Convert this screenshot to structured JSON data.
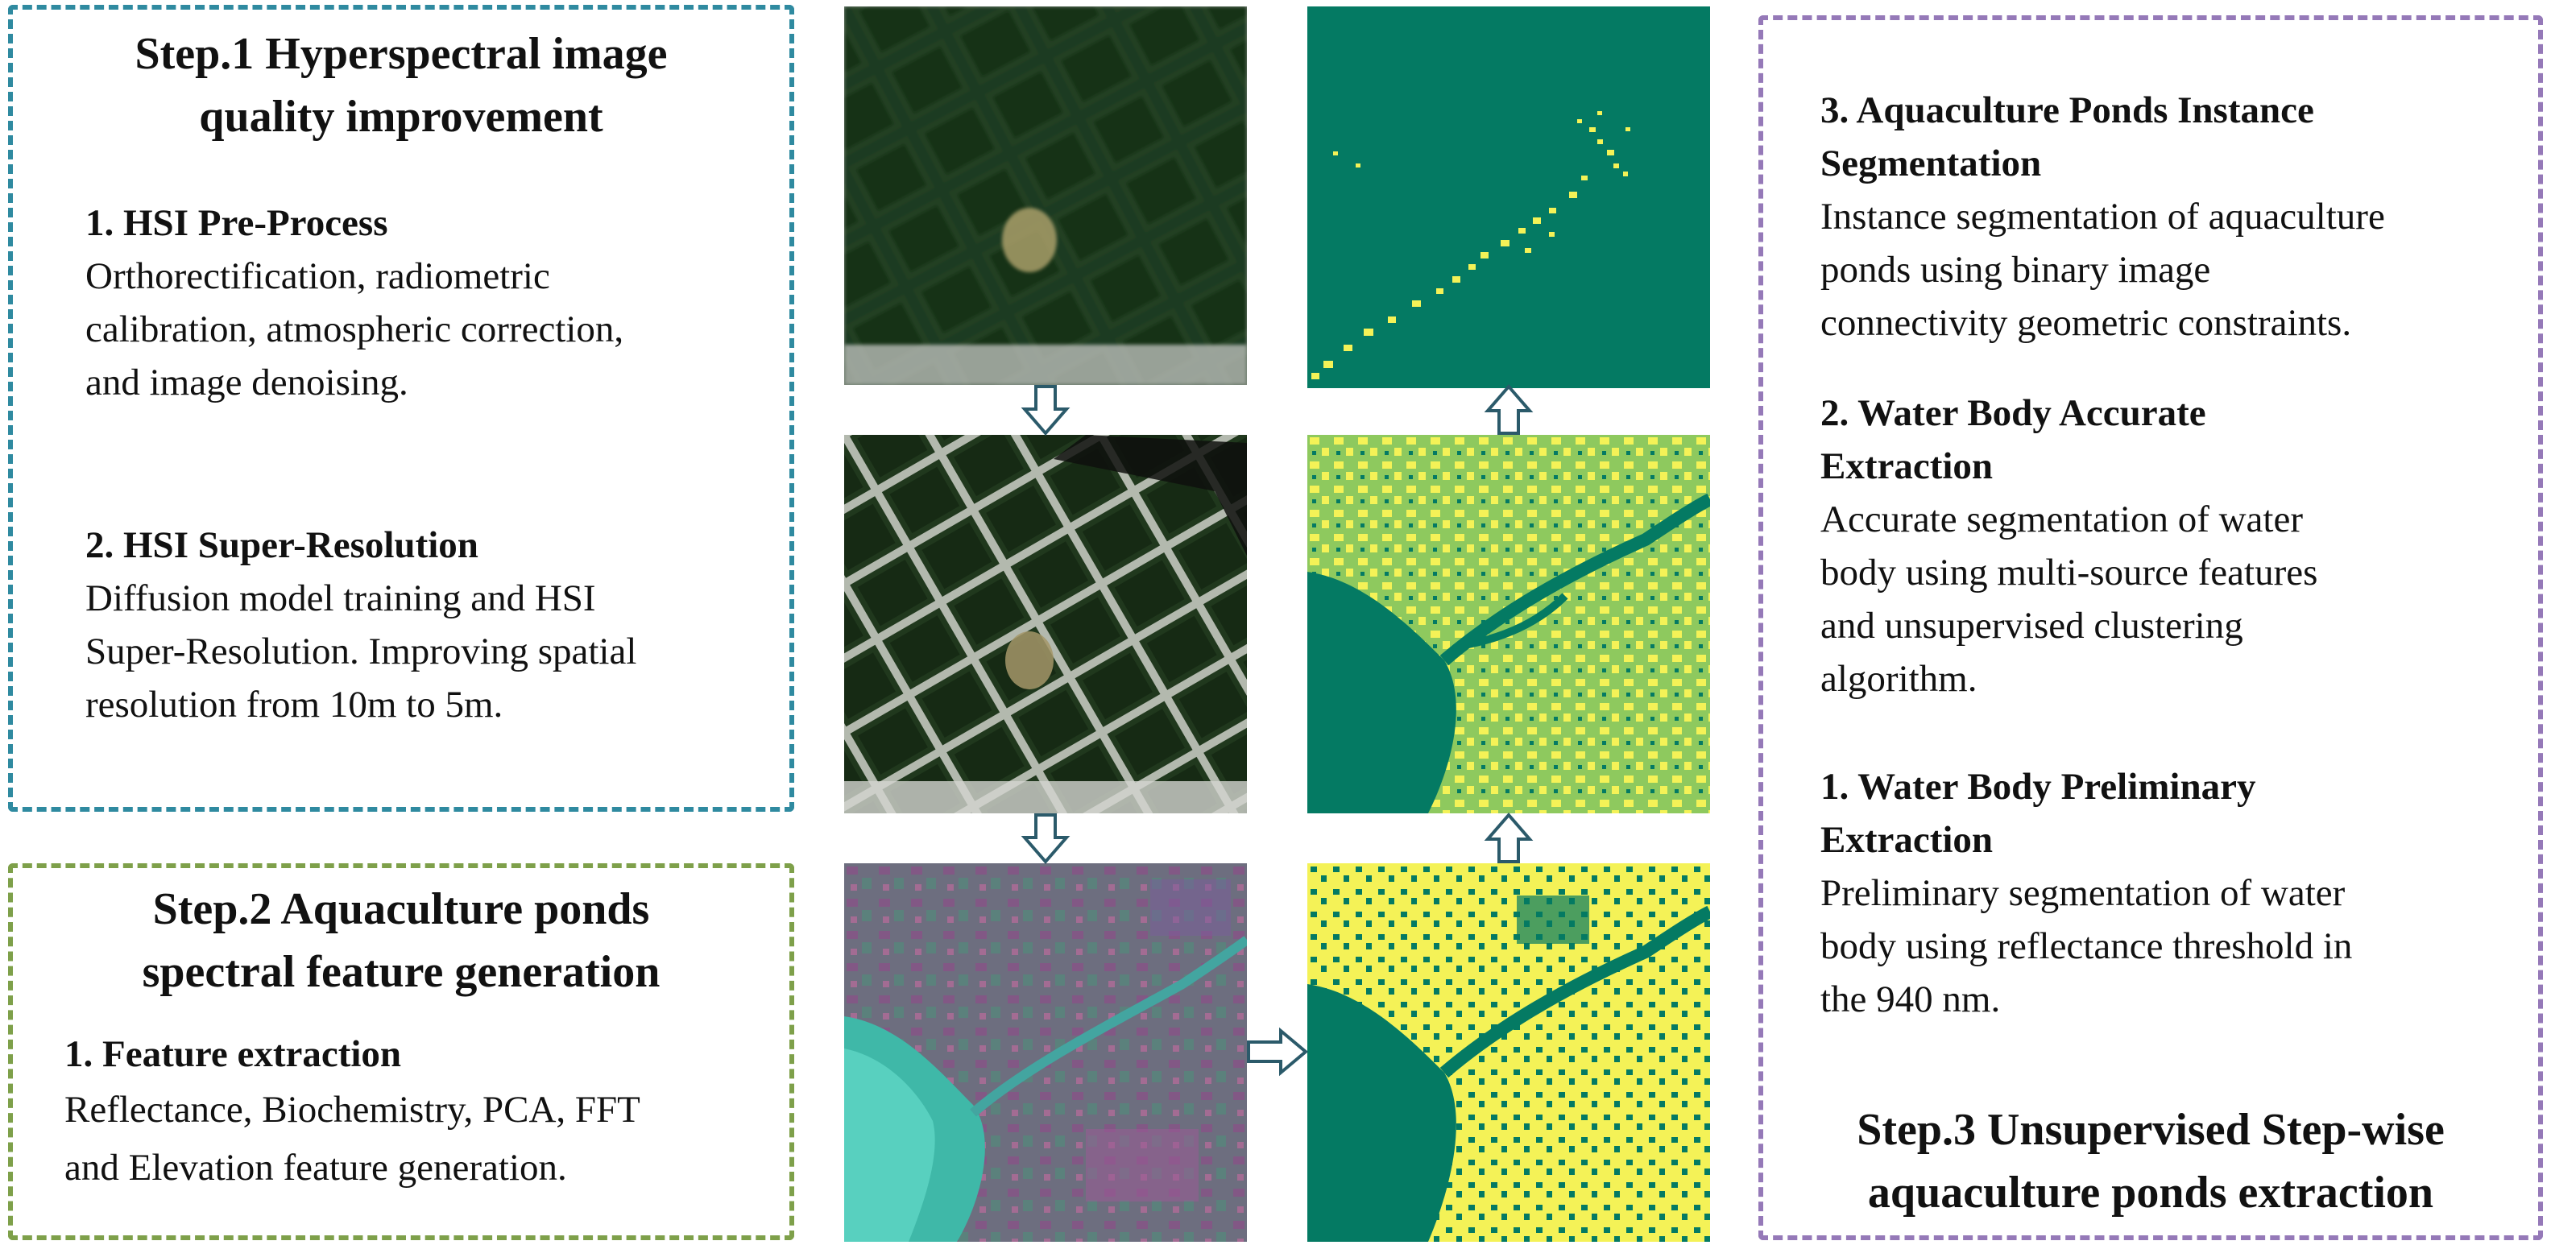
{
  "step1": {
    "title_lines": [
      "Step.1 Hyperspectral image",
      "quality improvement"
    ],
    "item1": {
      "heading": "1. HSI Pre-Process",
      "lines": [
        "Orthorectification, radiometric",
        "calibration, atmospheric correction,",
        "and image denoising."
      ]
    },
    "item2": {
      "heading": "2. HSI Super-Resolution",
      "lines": [
        "Diffusion model training and HSI",
        "Super-Resolution. Improving spatial",
        "resolution from 10m to 5m."
      ]
    }
  },
  "step2": {
    "title_lines": [
      "Step.2 Aquaculture ponds",
      "spectral feature generation"
    ],
    "item1": {
      "heading": "1.  Feature extraction",
      "lines": [
        "Reflectance, Biochemistry, PCA, FFT",
        "and Elevation feature generation."
      ]
    }
  },
  "step3": {
    "title_lines": [
      "Step.3 Unsupervised Step-wise",
      "aquaculture ponds extraction"
    ],
    "item3": {
      "heading_lines": [
        "3. Aquaculture Ponds Instance",
        "Segmentation"
      ],
      "lines": [
        "Instance segmentation of aquaculture",
        "ponds using binary image",
        "connectivity geometric constraints."
      ]
    },
    "item2": {
      "heading_lines": [
        "2. Water Body Accurate",
        "Extraction"
      ],
      "lines": [
        "Accurate segmentation of water",
        "body  using multi-source features",
        "and unsupervised clustering",
        "algorithm."
      ]
    },
    "item1": {
      "heading_lines": [
        "1. Water Body Preliminary",
        "Extraction"
      ],
      "lines": [
        "Preliminary  segmentation of water",
        "body using reflectance threshold in",
        "the 940 nm."
      ]
    }
  },
  "colors": {
    "step1_border": "#2f8aa0",
    "step2_border": "#7ea04a",
    "step3_border": "#9579b8",
    "arrow": "#2b5a6a",
    "mask_water": "#047a63",
    "mask_yellow": "#f4f257",
    "mask_light_green": "#8ec95e"
  }
}
